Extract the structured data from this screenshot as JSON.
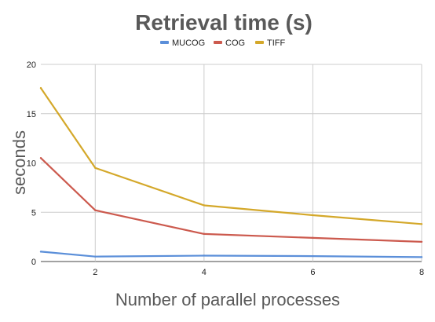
{
  "chart_data": {
    "type": "line",
    "title": "Retrieval time (s)",
    "xlabel": "Number of parallel processes",
    "ylabel": "seconds",
    "x": [
      1,
      2,
      4,
      6,
      8
    ],
    "xlim": [
      1,
      8
    ],
    "xticks": [
      "2",
      "4",
      "6",
      "8"
    ],
    "xtick_values": [
      2,
      4,
      6,
      8
    ],
    "ylim": [
      0,
      20
    ],
    "yticks": [
      "0",
      "5",
      "10",
      "15",
      "20"
    ],
    "ytick_values": [
      0,
      5,
      10,
      15,
      20
    ],
    "grid": true,
    "legend_position": "top",
    "series": [
      {
        "name": "MUCOG",
        "color": "#5b8fd9",
        "values": [
          1.0,
          0.5,
          0.6,
          0.55,
          0.45
        ]
      },
      {
        "name": "COG",
        "color": "#cc5a4e",
        "values": [
          10.5,
          5.2,
          2.8,
          2.4,
          2.0
        ]
      },
      {
        "name": "TIFF",
        "color": "#d4a82a",
        "values": [
          17.6,
          9.5,
          5.7,
          4.7,
          3.8
        ]
      }
    ]
  }
}
